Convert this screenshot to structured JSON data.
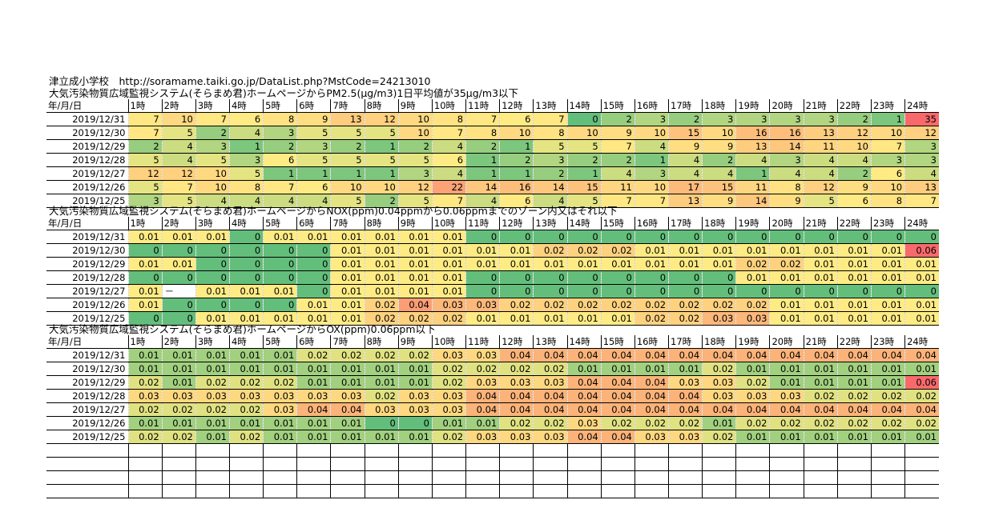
{
  "title": "津立成小学校　http://soramame.taiki.go.jp/DataList.php?MstCode=24213010",
  "date_header": "年/月/日",
  "hours": [
    "1時",
    "2時",
    "3時",
    "4時",
    "5時",
    "6時",
    "7時",
    "8時",
    "9時",
    "10時",
    "11時",
    "12時",
    "13時",
    "14時",
    "15時",
    "16時",
    "17時",
    "18時",
    "19時",
    "20時",
    "21時",
    "22時",
    "23時",
    "24時"
  ],
  "pm25": {
    "caption": "大気汚染物質広域監視システム(そらまめ君)ホームページからPM2.5(μg/m3)1日平均値が35μg/m3以下",
    "rows": [
      {
        "date": "2019/12/31",
        "values": [
          "7",
          "10",
          "7",
          "6",
          "8",
          "9",
          "13",
          "12",
          "10",
          "8",
          "7",
          "6",
          "7",
          "0",
          "2",
          "3",
          "2",
          "3",
          "3",
          "3",
          "3",
          "2",
          "1",
          "35"
        ]
      },
      {
        "date": "2019/12/30",
        "values": [
          "7",
          "5",
          "2",
          "4",
          "3",
          "5",
          "5",
          "5",
          "10",
          "7",
          "8",
          "10",
          "8",
          "10",
          "9",
          "10",
          "15",
          "10",
          "16",
          "16",
          "13",
          "12",
          "10",
          "12"
        ]
      },
      {
        "date": "2019/12/29",
        "values": [
          "2",
          "4",
          "3",
          "1",
          "2",
          "3",
          "2",
          "1",
          "2",
          "4",
          "2",
          "1",
          "5",
          "5",
          "7",
          "4",
          "9",
          "9",
          "13",
          "14",
          "11",
          "10",
          "7",
          "3"
        ]
      },
      {
        "date": "2019/12/28",
        "values": [
          "5",
          "4",
          "5",
          "3",
          "6",
          "5",
          "5",
          "5",
          "5",
          "6",
          "1",
          "2",
          "3",
          "2",
          "2",
          "1",
          "4",
          "2",
          "4",
          "3",
          "4",
          "4",
          "3",
          "3"
        ]
      },
      {
        "date": "2019/12/27",
        "values": [
          "12",
          "12",
          "10",
          "5",
          "1",
          "1",
          "1",
          "1",
          "3",
          "4",
          "1",
          "1",
          "2",
          "1",
          "4",
          "3",
          "4",
          "4",
          "1",
          "4",
          "4",
          "2",
          "6",
          "4"
        ]
      },
      {
        "date": "2019/12/26",
        "values": [
          "5",
          "7",
          "10",
          "8",
          "7",
          "6",
          "10",
          "10",
          "12",
          "22",
          "14",
          "16",
          "14",
          "15",
          "11",
          "10",
          "17",
          "15",
          "11",
          "8",
          "12",
          "9",
          "10",
          "13"
        ]
      },
      {
        "date": "2019/12/25",
        "values": [
          "3",
          "5",
          "4",
          "4",
          "4",
          "4",
          "5",
          "2",
          "5",
          "7",
          "4",
          "6",
          "4",
          "5",
          "7",
          "7",
          "13",
          "9",
          "14",
          "9",
          "5",
          "6",
          "8",
          "7"
        ]
      }
    ]
  },
  "nox": {
    "caption": "大気汚染物質広域監視システム(そらまめ君)ホームページからNOX(ppm)0.04ppmから0.06ppmまでのゾーン内又はそれ以下",
    "rows": [
      {
        "date": "2019/12/31",
        "values": [
          "0.01",
          "0.01",
          "0.01",
          "0",
          "0.01",
          "0.01",
          "0.01",
          "0.01",
          "0.01",
          "0.01",
          "0",
          "0",
          "0",
          "0",
          "0",
          "0",
          "0",
          "0",
          "0",
          "0",
          "0",
          "0",
          "0",
          "0"
        ]
      },
      {
        "date": "2019/12/30",
        "values": [
          "0",
          "0",
          "0",
          "0",
          "0",
          "0",
          "0.01",
          "0.01",
          "0.01",
          "0.01",
          "0.01",
          "0.01",
          "0.02",
          "0.02",
          "0.02",
          "0.01",
          "0.01",
          "0.01",
          "0.01",
          "0.01",
          "0.01",
          "0.01",
          "0.01",
          "0.06"
        ]
      },
      {
        "date": "2019/12/29",
        "values": [
          "0.01",
          "0.01",
          "0",
          "0",
          "0",
          "0",
          "0.01",
          "0.01",
          "0.01",
          "0.01",
          "0.01",
          "0.01",
          "0.01",
          "0.01",
          "0.01",
          "0.01",
          "0.01",
          "0.01",
          "0.02",
          "0.02",
          "0.01",
          "0.01",
          "0.01",
          "0.01"
        ]
      },
      {
        "date": "2019/12/28",
        "values": [
          "0",
          "0",
          "0",
          "0",
          "0",
          "0",
          "0.01",
          "0.01",
          "0.01",
          "0.01",
          "0",
          "0",
          "0",
          "0",
          "0",
          "0",
          "0",
          "0",
          "0.01",
          "0.01",
          "0.01",
          "0.01",
          "0.01",
          "0.01"
        ]
      },
      {
        "date": "2019/12/27",
        "values": [
          "0.01",
          "－",
          "0.01",
          "0.01",
          "0.01",
          "0",
          "0.01",
          "0.01",
          "0.01",
          "0.01",
          "0",
          "0",
          "0",
          "0",
          "0",
          "0",
          "0",
          "0",
          "0",
          "0",
          "0",
          "0",
          "0",
          "0"
        ]
      },
      {
        "date": "2019/12/26",
        "values": [
          "0.01",
          "0",
          "0",
          "0",
          "0",
          "0.01",
          "0.01",
          "0.02",
          "0.04",
          "0.03",
          "0.03",
          "0.02",
          "0.02",
          "0.02",
          "0.02",
          "0.02",
          "0.02",
          "0.02",
          "0.02",
          "0.01",
          "0.01",
          "0.01",
          "0.01",
          "0.01"
        ]
      },
      {
        "date": "2019/12/25",
        "values": [
          "0",
          "0",
          "0.01",
          "0.01",
          "0.01",
          "0.01",
          "0.01",
          "0.02",
          "0.02",
          "0.02",
          "0.01",
          "0.01",
          "0.01",
          "0.01",
          "0.01",
          "0.02",
          "0.02",
          "0.03",
          "0.03",
          "0.01",
          "0.01",
          "0.01",
          "0.01",
          "0.01"
        ]
      }
    ]
  },
  "ox": {
    "caption": "大気汚染物質広域監視システム(そらまめ君)ホームページからOX(ppm)0.06ppm以下",
    "rows": [
      {
        "date": "2019/12/31",
        "values": [
          "0.01",
          "0.01",
          "0.01",
          "0.01",
          "0.01",
          "0.02",
          "0.02",
          "0.02",
          "0.02",
          "0.03",
          "0.03",
          "0.04",
          "0.04",
          "0.04",
          "0.04",
          "0.04",
          "0.04",
          "0.04",
          "0.04",
          "0.04",
          "0.04",
          "0.04",
          "0.04",
          "0.04"
        ]
      },
      {
        "date": "2019/12/30",
        "values": [
          "0.01",
          "0.01",
          "0.01",
          "0.01",
          "0.01",
          "0.01",
          "0.01",
          "0.01",
          "0.01",
          "0.02",
          "0.02",
          "0.02",
          "0.02",
          "0.01",
          "0.01",
          "0.01",
          "0.01",
          "0.02",
          "0.01",
          "0.01",
          "0.01",
          "0.01",
          "0.01",
          "0.01"
        ]
      },
      {
        "date": "2019/12/29",
        "values": [
          "0.02",
          "0.01",
          "0.02",
          "0.02",
          "0.02",
          "0.01",
          "0.01",
          "0.01",
          "0.01",
          "0.02",
          "0.03",
          "0.03",
          "0.03",
          "0.04",
          "0.04",
          "0.04",
          "0.03",
          "0.03",
          "0.02",
          "0.01",
          "0.01",
          "0.01",
          "0.01",
          "0.06"
        ]
      },
      {
        "date": "2019/12/28",
        "values": [
          "0.03",
          "0.03",
          "0.03",
          "0.03",
          "0.03",
          "0.03",
          "0.03",
          "0.02",
          "0.03",
          "0.03",
          "0.04",
          "0.04",
          "0.04",
          "0.04",
          "0.04",
          "0.04",
          "0.04",
          "0.03",
          "0.03",
          "0.03",
          "0.02",
          "0.02",
          "0.02",
          "0.02"
        ]
      },
      {
        "date": "2019/12/27",
        "values": [
          "0.02",
          "0.02",
          "0.02",
          "0.02",
          "0.03",
          "0.04",
          "0.04",
          "0.03",
          "0.03",
          "0.03",
          "0.04",
          "0.04",
          "0.04",
          "0.04",
          "0.04",
          "0.04",
          "0.04",
          "0.04",
          "0.04",
          "0.04",
          "0.04",
          "0.04",
          "0.04",
          "0.04"
        ]
      },
      {
        "date": "2019/12/26",
        "values": [
          "0.01",
          "0.01",
          "0.01",
          "0.01",
          "0.01",
          "0.01",
          "0.01",
          "0",
          "0",
          "0.01",
          "0.01",
          "0.02",
          "0.02",
          "0.03",
          "0.02",
          "0.02",
          "0.02",
          "0.01",
          "0.02",
          "0.02",
          "0.02",
          "0.02",
          "0.02",
          "0.02"
        ]
      },
      {
        "date": "2019/12/25",
        "values": [
          "0.02",
          "0.02",
          "0.01",
          "0.02",
          "0.01",
          "0.01",
          "0.01",
          "0.01",
          "0.01",
          "0.02",
          "0.03",
          "0.03",
          "0.03",
          "0.04",
          "0.04",
          "0.03",
          "0.03",
          "0.02",
          "0.01",
          "0.01",
          "0.01",
          "0.01",
          "0.01",
          "0.01"
        ]
      }
    ]
  },
  "empty_rows": 4,
  "scales": {
    "pm25": {
      "min": 0,
      "mid": 6,
      "max": 35,
      "low": "#63be7b",
      "mid_color": "#ffeb84",
      "high": "#f8696b"
    },
    "nox": {
      "min": 0,
      "mid": 0.01,
      "max": 0.06,
      "low": "#63be7b",
      "mid_color": "#ffeb84",
      "high": "#f8696b"
    },
    "ox": {
      "min": 0,
      "mid": 0.025,
      "max": 0.06,
      "low": "#63be7b",
      "mid_color": "#ffeb84",
      "high": "#f8696b"
    }
  }
}
